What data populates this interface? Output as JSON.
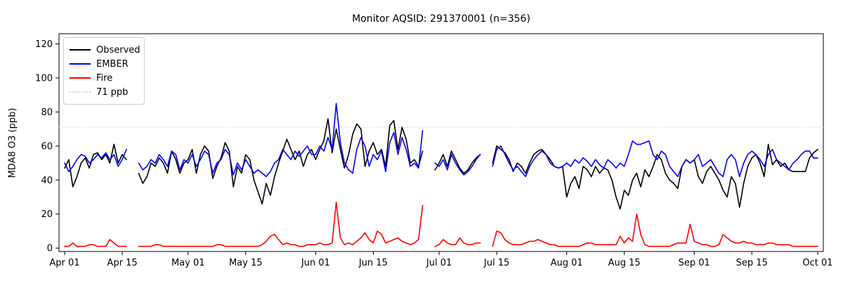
{
  "chart_data": {
    "type": "line",
    "title": "Monitor AQSID: 291370001 (n=356)",
    "xlabel": "",
    "ylabel": "MDA8 O3 (ppb)",
    "ylim": [
      -2,
      126
    ],
    "yticks": [
      0,
      20,
      40,
      60,
      80,
      100,
      120
    ],
    "xtick_labels": [
      "Apr 01",
      "Apr 15",
      "May 01",
      "May 15",
      "Jun 01",
      "Jun 15",
      "Jul 01",
      "Jul 15",
      "Aug 01",
      "Aug 15",
      "Sep 01",
      "Sep 15",
      "Oct 01"
    ],
    "xtick_days": [
      0,
      14,
      30,
      44,
      61,
      75,
      91,
      105,
      122,
      136,
      153,
      167,
      183
    ],
    "x_start_label": "Apr 01",
    "x_end_label": "Oct 01",
    "n_points_label": "n=356",
    "grid": false,
    "legend_position": "upper left",
    "reference_line": {
      "label": "71 ppb",
      "value": 71,
      "color": "#d3d3d3",
      "style": "dotted"
    },
    "series": [
      {
        "name": "Observed",
        "color": "#000000",
        "values": [
          47,
          52,
          36,
          42,
          50,
          53,
          47,
          55,
          56,
          52,
          55,
          50,
          61,
          50,
          55,
          52,
          null,
          null,
          44,
          38,
          42,
          50,
          48,
          53,
          50,
          44,
          57,
          52,
          44,
          50,
          52,
          58,
          44,
          55,
          60,
          57,
          41,
          48,
          53,
          62,
          57,
          36,
          48,
          44,
          55,
          52,
          40,
          33,
          26,
          38,
          31,
          42,
          50,
          57,
          64,
          58,
          52,
          57,
          48,
          55,
          58,
          52,
          58,
          63,
          76,
          56,
          70,
          58,
          47,
          55,
          67,
          73,
          70,
          48,
          57,
          62,
          55,
          58,
          48,
          72,
          75,
          58,
          71,
          64,
          50,
          52,
          48,
          57,
          null,
          null,
          46,
          50,
          55,
          48,
          57,
          52,
          47,
          44,
          46,
          50,
          53,
          55,
          null,
          null,
          50,
          60,
          58,
          56,
          52,
          45,
          50,
          48,
          44,
          50,
          55,
          57,
          58,
          55,
          52,
          48,
          47,
          48,
          30,
          38,
          42,
          35,
          48,
          46,
          42,
          48,
          44,
          47,
          46,
          40,
          30,
          23,
          34,
          31,
          40,
          44,
          36,
          46,
          42,
          48,
          55,
          52,
          44,
          40,
          38,
          35,
          48,
          52,
          50,
          52,
          42,
          38,
          45,
          48,
          44,
          40,
          34,
          30,
          42,
          38,
          24,
          38,
          48,
          53,
          55,
          50,
          42,
          61,
          49,
          52,
          48,
          50,
          46,
          45,
          45,
          45,
          45,
          53,
          56,
          58
        ]
      },
      {
        "name": "EMBER",
        "color": "#0000ff",
        "values": [
          50,
          45,
          48,
          52,
          55,
          54,
          50,
          52,
          55,
          53,
          56,
          52,
          55,
          48,
          52,
          58,
          null,
          null,
          50,
          46,
          48,
          52,
          50,
          55,
          52,
          48,
          57,
          55,
          46,
          52,
          50,
          55,
          48,
          52,
          57,
          55,
          44,
          50,
          52,
          58,
          55,
          43,
          50,
          46,
          52,
          48,
          44,
          46,
          44,
          42,
          45,
          50,
          52,
          58,
          55,
          52,
          57,
          54,
          57,
          60,
          55,
          55,
          60,
          57,
          65,
          58,
          85,
          62,
          50,
          46,
          44,
          58,
          65,
          60,
          48,
          55,
          52,
          57,
          45,
          62,
          68,
          55,
          65,
          58,
          48,
          50,
          47,
          69,
          null,
          null,
          50,
          48,
          52,
          46,
          55,
          50,
          46,
          43,
          45,
          48,
          52,
          55,
          null,
          null,
          48,
          58,
          60,
          55,
          50,
          46,
          48,
          45,
          42,
          48,
          52,
          55,
          57,
          55,
          50,
          48,
          47,
          48,
          50,
          48,
          52,
          50,
          53,
          51,
          48,
          52,
          49,
          47,
          52,
          50,
          47,
          50,
          48,
          55,
          63,
          61,
          61,
          62,
          63,
          55,
          52,
          57,
          55,
          48,
          45,
          42,
          48,
          52,
          50,
          52,
          55,
          48,
          50,
          52,
          48,
          44,
          42,
          52,
          55,
          52,
          42,
          50,
          55,
          57,
          55,
          52,
          48,
          55,
          58,
          52,
          50,
          48,
          46,
          50,
          52,
          55,
          57,
          57,
          53,
          53
        ]
      },
      {
        "name": "Fire",
        "color": "#ff0000",
        "values": [
          1,
          1,
          3,
          1,
          1,
          1,
          2,
          2,
          1,
          1,
          1,
          5,
          3,
          1,
          1,
          1,
          null,
          null,
          1,
          1,
          1,
          1,
          2,
          2,
          1,
          1,
          1,
          1,
          1,
          1,
          1,
          1,
          1,
          1,
          1,
          1,
          1,
          2,
          2,
          1,
          1,
          1,
          1,
          1,
          1,
          1,
          1,
          1,
          2,
          4,
          7,
          8,
          5,
          2,
          3,
          2,
          2,
          1,
          1,
          2,
          2,
          2,
          3,
          2,
          2,
          3,
          27,
          6,
          2,
          3,
          2,
          4,
          6,
          9,
          5,
          3,
          10,
          8,
          3,
          4,
          5,
          6,
          4,
          3,
          2,
          3,
          5,
          25,
          null,
          null,
          1,
          2,
          5,
          3,
          2,
          2,
          6,
          3,
          2,
          2,
          3,
          3,
          null,
          null,
          1,
          10,
          9,
          5,
          3,
          2,
          2,
          2,
          3,
          4,
          4,
          5,
          4,
          3,
          2,
          2,
          1,
          1,
          1,
          1,
          1,
          1,
          2,
          3,
          3,
          2,
          2,
          2,
          2,
          2,
          2,
          7,
          3,
          6,
          4,
          20,
          8,
          2,
          1,
          1,
          1,
          1,
          1,
          1,
          2,
          3,
          3,
          3,
          14,
          4,
          3,
          2,
          2,
          1,
          1,
          2,
          8,
          6,
          4,
          3,
          3,
          4,
          3,
          3,
          2,
          2,
          2,
          3,
          3,
          2,
          2,
          2,
          2,
          1,
          1,
          1,
          1,
          1,
          1,
          1
        ]
      }
    ]
  },
  "legend": {
    "items": [
      {
        "label": "Observed",
        "color": "#000000",
        "style": "solid"
      },
      {
        "label": "EMBER",
        "color": "#0000ff",
        "style": "solid"
      },
      {
        "label": "Fire",
        "color": "#ff0000",
        "style": "solid"
      },
      {
        "label": "71 ppb",
        "color": "#d3d3d3",
        "style": "dotted"
      }
    ]
  }
}
